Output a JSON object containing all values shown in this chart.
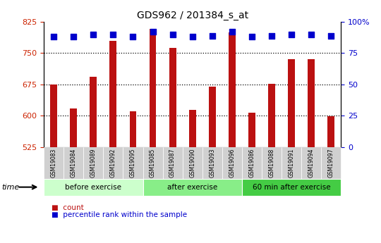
{
  "title": "GDS962 / 201384_s_at",
  "samples": [
    "GSM19083",
    "GSM19084",
    "GSM19089",
    "GSM19092",
    "GSM19095",
    "GSM19085",
    "GSM19087",
    "GSM19090",
    "GSM19093",
    "GSM19096",
    "GSM19086",
    "GSM19088",
    "GSM19091",
    "GSM19094",
    "GSM19097"
  ],
  "counts": [
    675,
    618,
    693,
    780,
    610,
    808,
    762,
    614,
    670,
    800,
    608,
    677,
    735,
    735,
    598
  ],
  "percentile_ranks": [
    88,
    88,
    90,
    90,
    88,
    92,
    90,
    88,
    89,
    92,
    88,
    89,
    90,
    90,
    89
  ],
  "groups": [
    {
      "label": "before exercise",
      "start": 0,
      "end": 5,
      "color": "#ccffcc"
    },
    {
      "label": "after exercise",
      "start": 5,
      "end": 10,
      "color": "#88ee88"
    },
    {
      "label": "60 min after exercise",
      "start": 10,
      "end": 15,
      "color": "#44cc44"
    }
  ],
  "ylim_left": [
    525,
    825
  ],
  "ylim_right": [
    0,
    100
  ],
  "yticks_left": [
    525,
    600,
    675,
    750,
    825
  ],
  "yticks_right": [
    0,
    25,
    50,
    75,
    100
  ],
  "grid_lines": [
    600,
    675,
    750
  ],
  "bar_color": "#bb1111",
  "dot_color": "#0000cc",
  "left_tick_color": "#cc2200",
  "right_tick_color": "#0000cc",
  "bar_width": 0.35,
  "dot_size": 40,
  "plot_bg": "#ffffff",
  "xlabel_bg": "#d0d0d0",
  "group_divider_color": "#ffffff"
}
